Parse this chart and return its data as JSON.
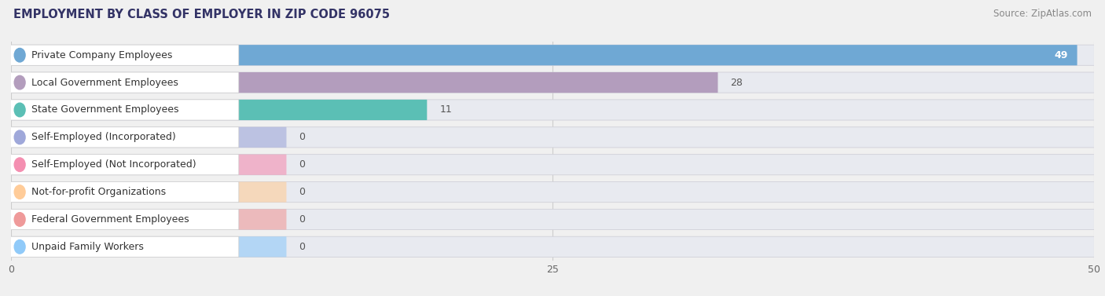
{
  "title": "EMPLOYMENT BY CLASS OF EMPLOYER IN ZIP CODE 96075",
  "source": "Source: ZipAtlas.com",
  "categories": [
    "Private Company Employees",
    "Local Government Employees",
    "State Government Employees",
    "Self-Employed (Incorporated)",
    "Self-Employed (Not Incorporated)",
    "Not-for-profit Organizations",
    "Federal Government Employees",
    "Unpaid Family Workers"
  ],
  "values": [
    49,
    28,
    11,
    0,
    0,
    0,
    0,
    0
  ],
  "bar_colors": [
    "#6fa8d4",
    "#b39dbd",
    "#5bbfb5",
    "#9fa8da",
    "#f48fb1",
    "#ffcc99",
    "#ef9a9a",
    "#90caf9"
  ],
  "xlim": [
    0,
    50
  ],
  "xticks": [
    0,
    25,
    50
  ],
  "background_color": "#f0f0f0",
  "row_bg_color": "#e8e8ee",
  "label_bg_color": "#ffffff",
  "title_fontsize": 10.5,
  "source_fontsize": 8.5,
  "label_fontsize": 9,
  "value_fontsize": 9,
  "grid_color": "#cccccc",
  "title_color": "#333366",
  "source_color": "#888888",
  "label_text_color": "#333333",
  "value_inside_color": "#ffffff",
  "value_outside_color": "#555555"
}
